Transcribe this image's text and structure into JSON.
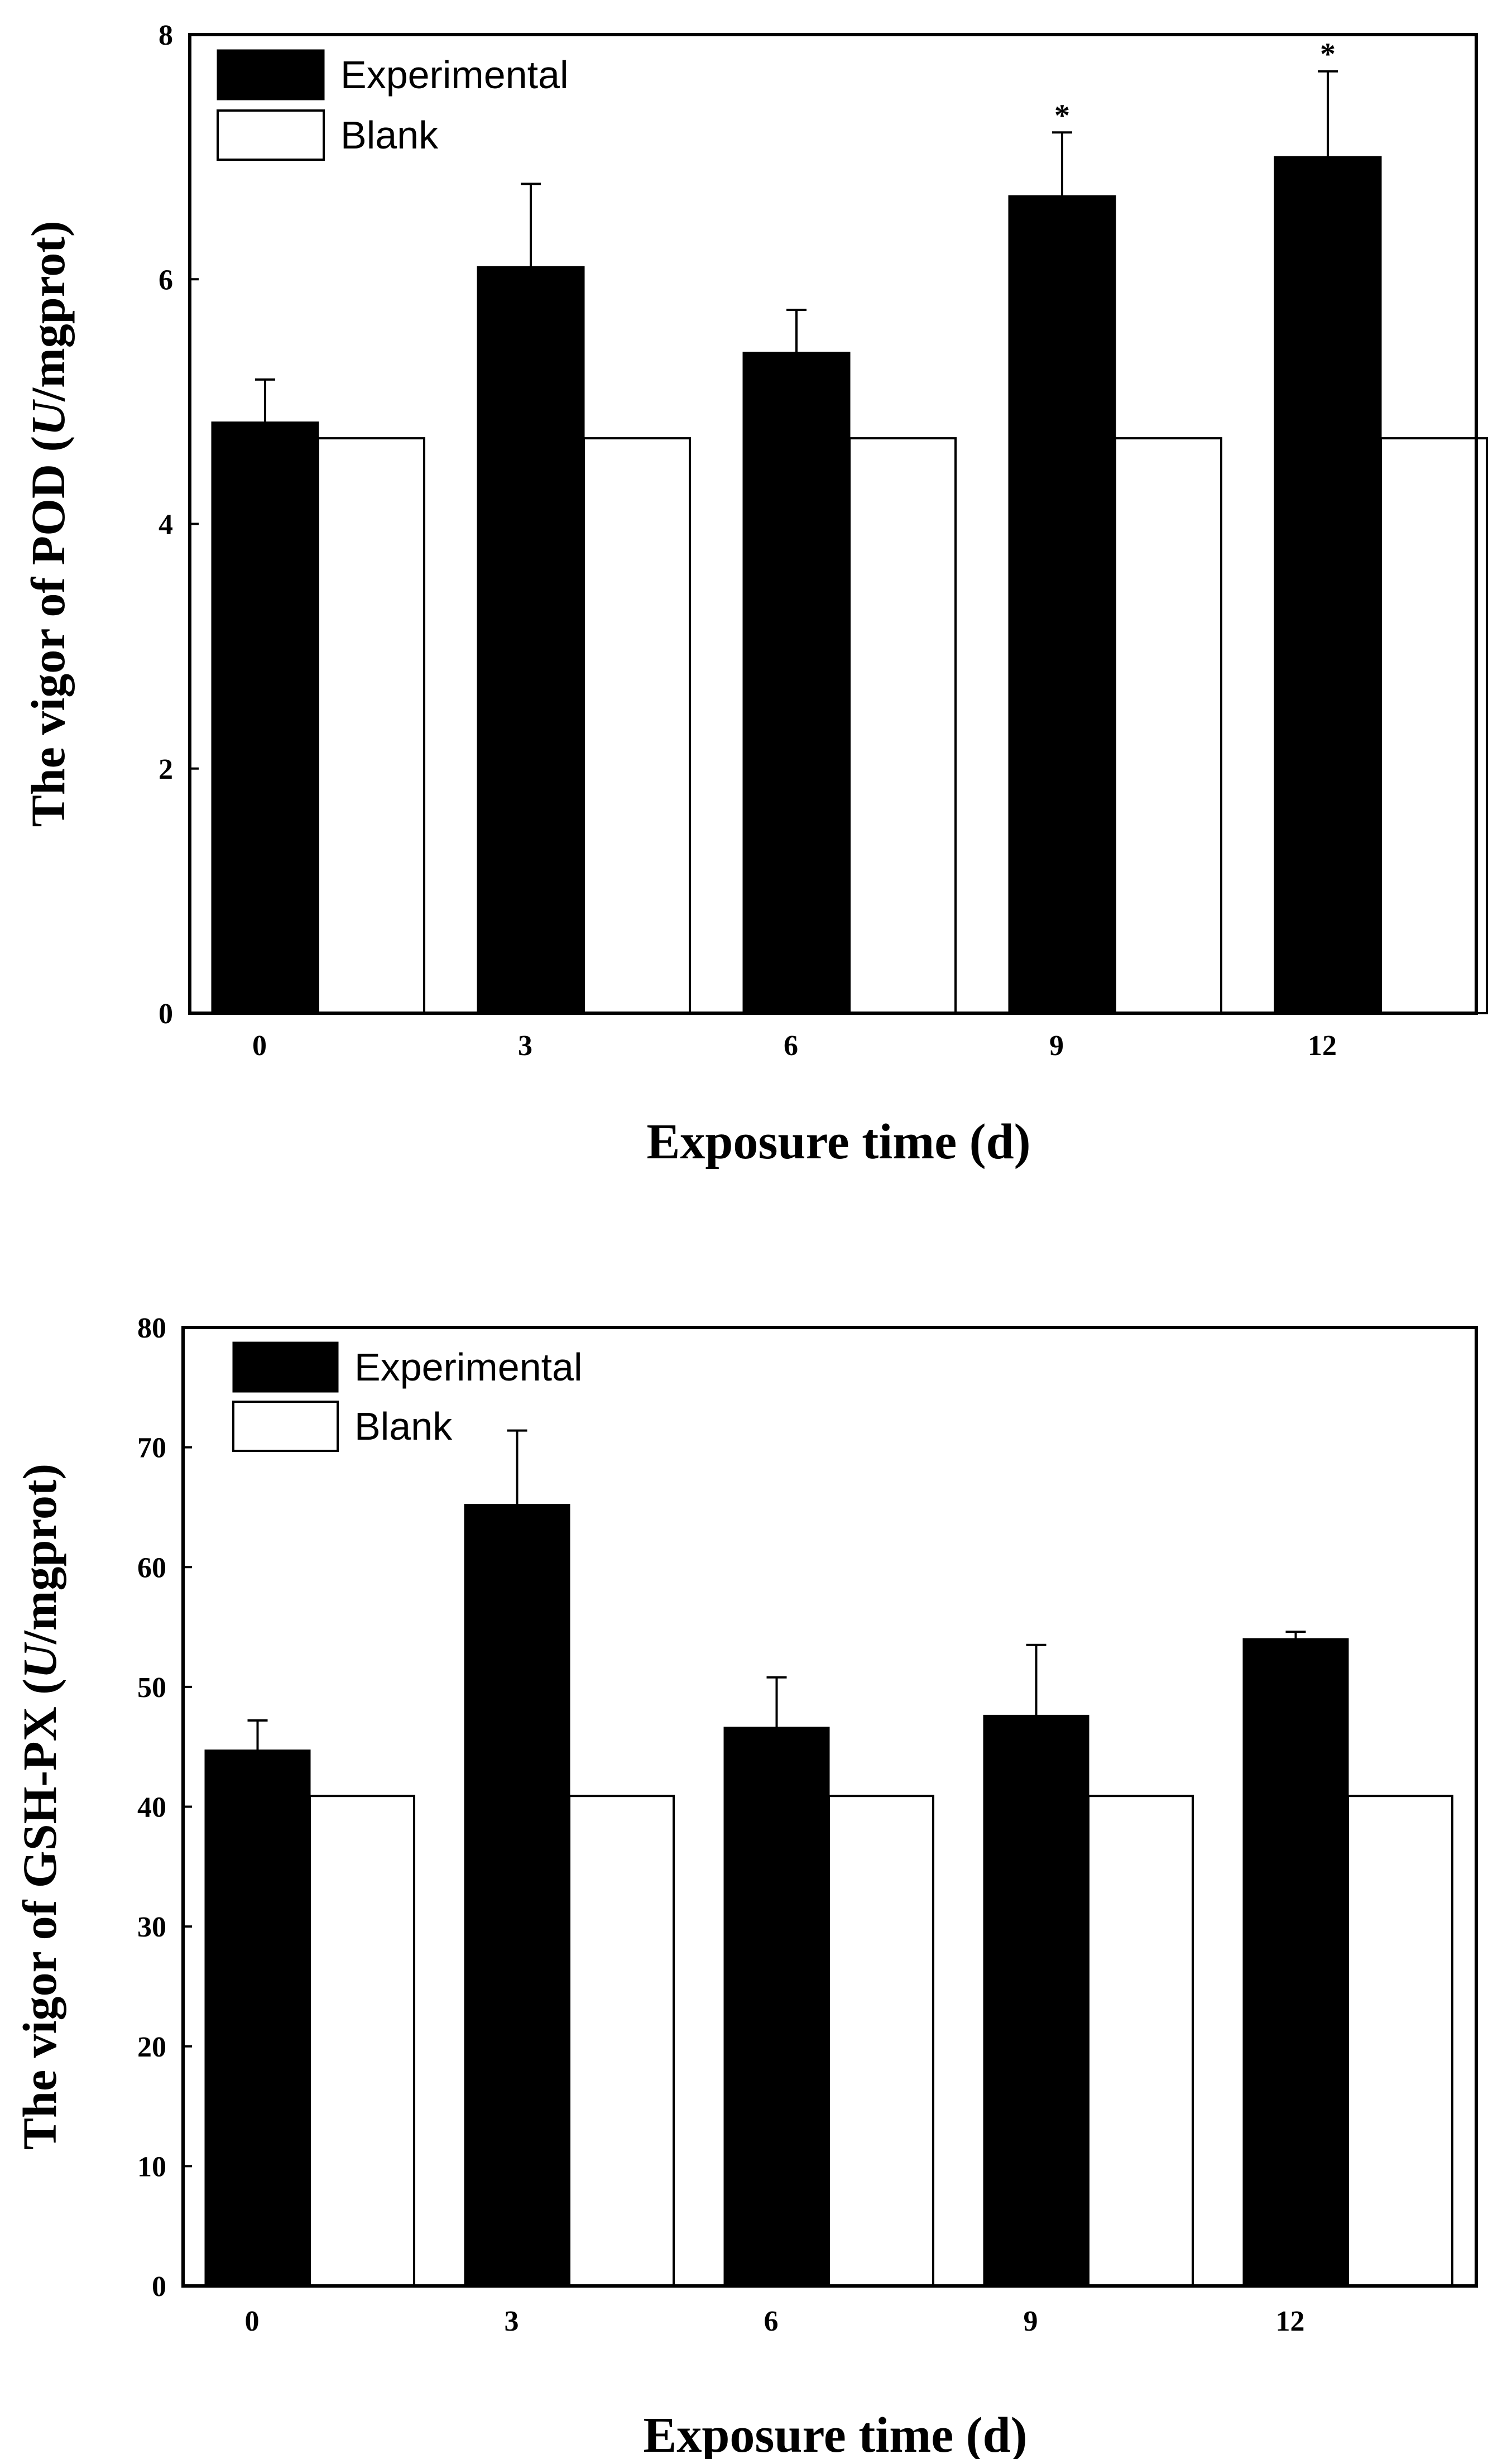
{
  "colors": {
    "experimental": "#000000",
    "blank": "#ffffff",
    "axis": "#000000"
  },
  "chart_data": [
    {
      "type": "bar",
      "title": "",
      "xlabel": "Exposure time (d)",
      "ylabel_prefix": "The vigor of POD (",
      "ylabel_italic": "U",
      "ylabel_suffix": "/mgprot)",
      "categories": [
        "0",
        "3",
        "6",
        "9",
        "12"
      ],
      "ylim": [
        0,
        8
      ],
      "yticks": [
        0,
        2,
        4,
        6,
        8
      ],
      "legend": [
        "Experimental",
        "Blank"
      ],
      "series": [
        {
          "name": "Experimental",
          "values": [
            4.83,
            6.1,
            5.4,
            6.68,
            7.0
          ],
          "errors": [
            0.35,
            0.68,
            0.35,
            0.52,
            0.7
          ]
        },
        {
          "name": "Blank",
          "values": [
            4.7,
            4.7,
            4.7,
            4.7,
            4.7
          ]
        }
      ],
      "annotations": [
        "",
        "",
        "",
        "*",
        "*"
      ]
    },
    {
      "type": "bar",
      "title": "",
      "xlabel": "Exposure time (d)",
      "ylabel_prefix": "The vigor of GSH-PX (",
      "ylabel_italic": "U",
      "ylabel_suffix": "/mgprot)",
      "categories": [
        "0",
        "3",
        "6",
        "9",
        "12"
      ],
      "ylim": [
        0,
        80
      ],
      "yticks": [
        0,
        10,
        20,
        30,
        40,
        50,
        60,
        70,
        80
      ],
      "legend": [
        "Experimental",
        "Blank"
      ],
      "series": [
        {
          "name": "Experimental",
          "values": [
            44.7,
            65.2,
            46.6,
            47.6,
            54.0
          ],
          "errors": [
            2.5,
            6.2,
            4.2,
            5.9,
            0.6
          ]
        },
        {
          "name": "Blank",
          "values": [
            40.9,
            40.9,
            40.9,
            40.9,
            40.9
          ]
        }
      ],
      "annotations": [
        "",
        "",
        "",
        "",
        ""
      ]
    }
  ]
}
